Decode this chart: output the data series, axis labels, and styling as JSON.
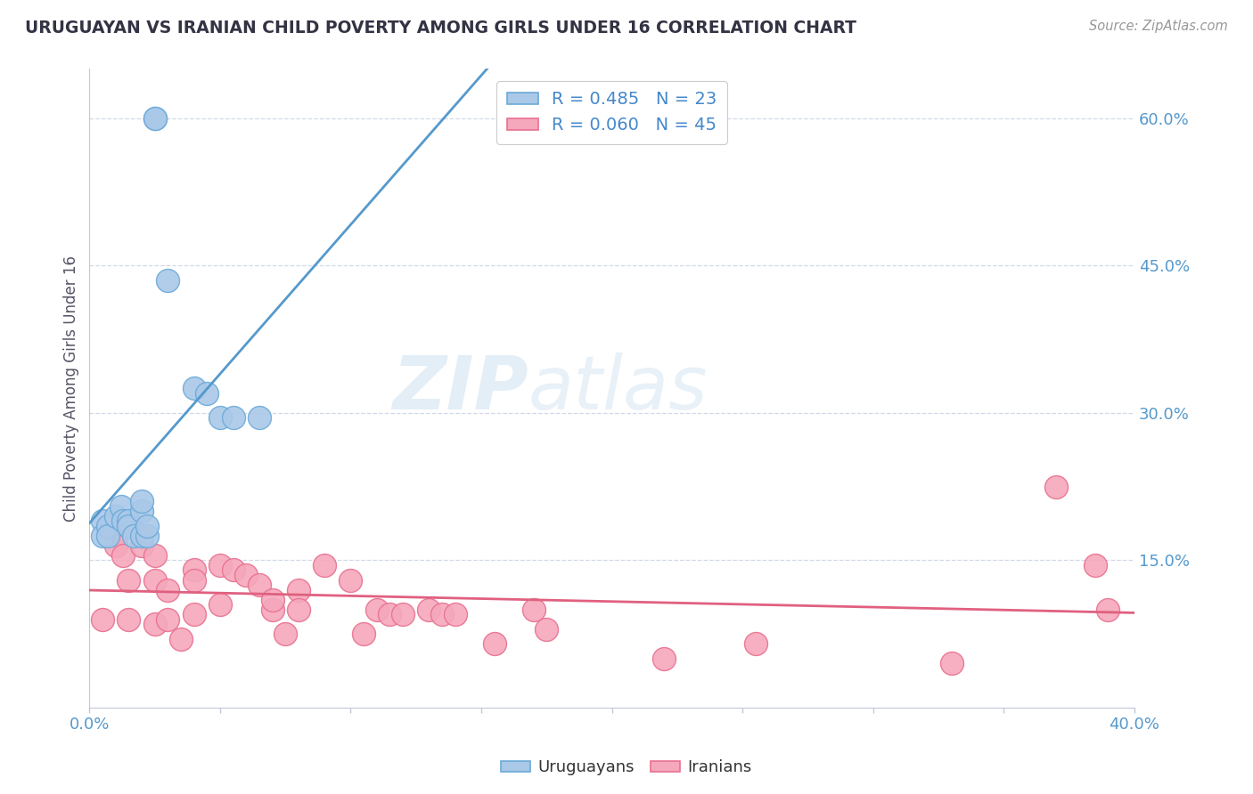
{
  "title": "URUGUAYAN VS IRANIAN CHILD POVERTY AMONG GIRLS UNDER 16 CORRELATION CHART",
  "source": "Source: ZipAtlas.com",
  "ylabel": "Child Poverty Among Girls Under 16",
  "xlim": [
    0.0,
    0.4
  ],
  "ylim": [
    0.0,
    0.65
  ],
  "xticks": [
    0.0,
    0.05,
    0.1,
    0.15,
    0.2,
    0.25,
    0.3,
    0.35,
    0.4
  ],
  "xtick_labels": [
    "0.0%",
    "",
    "",
    "",
    "",
    "",
    "",
    "",
    "40.0%"
  ],
  "ytick_vals_right": [
    0.0,
    0.15,
    0.3,
    0.45,
    0.6
  ],
  "ytick_labels_right": [
    "",
    "15.0%",
    "30.0%",
    "45.0%",
    "60.0%"
  ],
  "uruguayan_color": "#aac8e8",
  "iranian_color": "#f5a8bb",
  "uruguayan_edge_color": "#6aaad8",
  "iranian_edge_color": "#e87090",
  "uruguayan_line_color": "#5599cc",
  "iranian_line_color": "#e06080",
  "uruguayan_R": 0.485,
  "uruguayan_N": 23,
  "iranian_R": 0.06,
  "iranian_N": 45,
  "uruguayan_x": [
    0.005,
    0.005,
    0.007,
    0.007,
    0.01,
    0.012,
    0.013,
    0.015,
    0.015,
    0.017,
    0.02,
    0.02,
    0.02,
    0.022,
    0.022,
    0.025,
    0.025,
    0.03,
    0.04,
    0.045,
    0.05,
    0.055,
    0.065
  ],
  "uruguayan_y": [
    0.19,
    0.175,
    0.185,
    0.175,
    0.195,
    0.205,
    0.19,
    0.19,
    0.185,
    0.175,
    0.2,
    0.21,
    0.175,
    0.175,
    0.185,
    0.6,
    0.6,
    0.435,
    0.325,
    0.32,
    0.295,
    0.295,
    0.295
  ],
  "iranian_x": [
    0.005,
    0.01,
    0.01,
    0.013,
    0.015,
    0.015,
    0.02,
    0.02,
    0.025,
    0.025,
    0.025,
    0.03,
    0.03,
    0.035,
    0.04,
    0.04,
    0.04,
    0.05,
    0.05,
    0.055,
    0.06,
    0.065,
    0.07,
    0.07,
    0.075,
    0.08,
    0.08,
    0.09,
    0.1,
    0.105,
    0.11,
    0.115,
    0.12,
    0.13,
    0.135,
    0.14,
    0.155,
    0.17,
    0.175,
    0.22,
    0.255,
    0.33,
    0.37,
    0.385,
    0.39
  ],
  "iranian_y": [
    0.09,
    0.175,
    0.165,
    0.155,
    0.13,
    0.09,
    0.175,
    0.165,
    0.155,
    0.13,
    0.085,
    0.12,
    0.09,
    0.07,
    0.14,
    0.13,
    0.095,
    0.145,
    0.105,
    0.14,
    0.135,
    0.125,
    0.1,
    0.11,
    0.075,
    0.12,
    0.1,
    0.145,
    0.13,
    0.075,
    0.1,
    0.095,
    0.095,
    0.1,
    0.095,
    0.095,
    0.065,
    0.1,
    0.08,
    0.05,
    0.065,
    0.045,
    0.225,
    0.145,
    0.1
  ],
  "background_color": "#ffffff",
  "watermark_zip_color": "#ddeef8",
  "watermark_atlas_color": "#c8dff0",
  "grid_color": "#d0d8e8",
  "legend_box_color": "#ffffff"
}
